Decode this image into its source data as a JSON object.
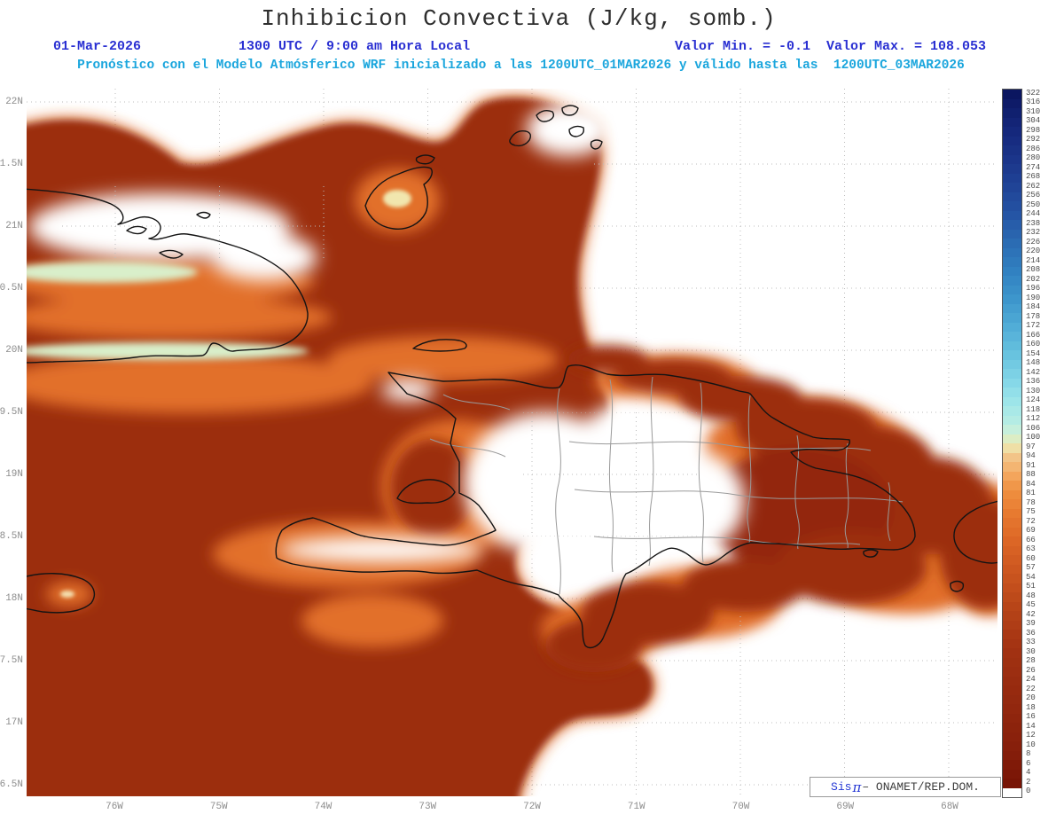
{
  "title": "Inhibicion Convectiva (J/kg, somb.)",
  "header": {
    "date": "01-Mar-2026",
    "time_label": "1300 UTC / 9:00 am Hora Local",
    "min_label": "Valor Min. = -0.1",
    "max_label": "Valor Max. = 108.053",
    "forecast": "Pronóstico con el Modelo Atmósferico WRF inicializado a las 1200UTC_01MAR2026 y válido hasta las  1200UTC_03MAR2026"
  },
  "axes": {
    "lat_labels": [
      "22N",
      "1.5N",
      "21N",
      "0.5N",
      "20N",
      "9.5N",
      "19N",
      "8.5N",
      "18N",
      "7.5N",
      "17N",
      "6.5N"
    ],
    "lon_labels": [
      "76W",
      "75W",
      "74W",
      "73W",
      "72W",
      "71W",
      "70W",
      "69W",
      "68W"
    ]
  },
  "colorbar": {
    "ticks": [
      322,
      316,
      310,
      304,
      298,
      292,
      286,
      280,
      274,
      268,
      262,
      256,
      250,
      244,
      238,
      232,
      226,
      220,
      214,
      208,
      202,
      196,
      190,
      184,
      178,
      172,
      166,
      160,
      154,
      148,
      142,
      136,
      130,
      124,
      118,
      112,
      106,
      100,
      97,
      94,
      91,
      88,
      84,
      81,
      78,
      75,
      72,
      69,
      66,
      63,
      60,
      57,
      54,
      51,
      48,
      45,
      42,
      39,
      36,
      33,
      30,
      28,
      26,
      24,
      22,
      20,
      18,
      16,
      14,
      12,
      10,
      8,
      6,
      4,
      2,
      0
    ],
    "anchors": [
      [
        0,
        "#ffffff"
      ],
      [
        2,
        "#781405"
      ],
      [
        8,
        "#841d0a"
      ],
      [
        16,
        "#8f250d"
      ],
      [
        24,
        "#992c10"
      ],
      [
        33,
        "#a53413"
      ],
      [
        45,
        "#b84518"
      ],
      [
        57,
        "#cd5720"
      ],
      [
        66,
        "#dc6626"
      ],
      [
        75,
        "#e77a30"
      ],
      [
        81,
        "#ee8c3d"
      ],
      [
        88,
        "#f3a55c"
      ],
      [
        94,
        "#f2c488"
      ],
      [
        97,
        "#efdfa6"
      ],
      [
        100,
        "#dcedc4"
      ],
      [
        106,
        "#c6efdc"
      ],
      [
        112,
        "#b4ece4"
      ],
      [
        124,
        "#9de5e9"
      ],
      [
        136,
        "#86d8e8"
      ],
      [
        154,
        "#68c3df"
      ],
      [
        172,
        "#51add7"
      ],
      [
        190,
        "#3d96cc"
      ],
      [
        208,
        "#3181c1"
      ],
      [
        226,
        "#2b6cb3"
      ],
      [
        244,
        "#2555a5"
      ],
      [
        262,
        "#204497"
      ],
      [
        280,
        "#1b358a"
      ],
      [
        298,
        "#15287c"
      ],
      [
        310,
        "#10206f"
      ],
      [
        322,
        "#0b1660"
      ]
    ]
  },
  "credit": {
    "brand_prefix": "Sis",
    "brand_pi": "π",
    "rest": "– ONAMET/REP.DOM."
  },
  "chart_data": {
    "type": "heatmap",
    "title": "Inhibicion Convectiva (J/kg, somb.)",
    "units": "J/kg",
    "run_date": "01-Mar-2026",
    "valid_time": "1300 UTC / 9:00 am Hora Local",
    "value_min": -0.1,
    "value_max": 108.053,
    "colorbar_min": 0,
    "colorbar_max": 322,
    "lat_ticks_deg_n": [
      22,
      21.5,
      21,
      20.5,
      20,
      19.5,
      19,
      18.5,
      18,
      17.5,
      17,
      16.5
    ],
    "lon_ticks_deg_w": [
      76,
      75,
      74,
      73,
      72,
      71,
      70,
      69,
      68
    ],
    "legend_position": "right",
    "grid": "dotted",
    "notes": "High CIN (dark red, ~20-60 J/kg) over ocean west and north of Hispaniola and over eastern Dominican Republic; near-zero CIN (white) over island interiors; pale green strip (~90-100 J/kg) along southeastern Cuba coast"
  }
}
